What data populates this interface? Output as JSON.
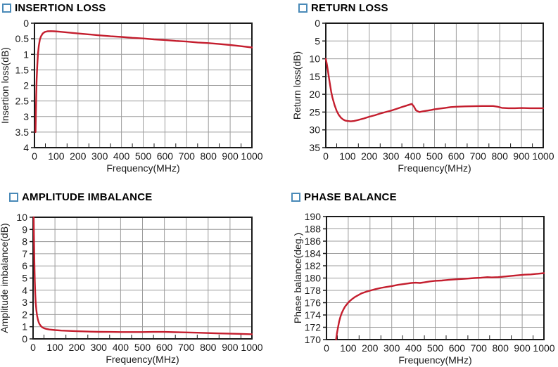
{
  "colors": {
    "curve": "#c41e2e",
    "grid": "#9c9c9c",
    "frame": "#1a1a1a",
    "text": "#1a1a1a",
    "title_square_border": "#4a8ab8",
    "background": "#ffffff"
  },
  "chart_data": [
    {
      "type": "line",
      "title": "INSERTION LOSS",
      "xlabel": "Frequency(MHz)",
      "ylabel": "Insertion loss(dB)",
      "xlim": [
        0,
        1000
      ],
      "ylim": [
        0,
        4
      ],
      "y_inverted": true,
      "grid": true,
      "legend": "none",
      "xticks": [
        0,
        100,
        200,
        300,
        400,
        500,
        600,
        700,
        800,
        900,
        1000
      ],
      "x_minor_step": 50,
      "yticks": [
        0,
        0.5,
        1,
        1.5,
        2,
        2.5,
        3,
        3.5,
        4
      ],
      "line_color": "#c41e2e",
      "series": [
        {
          "name": "insertion loss",
          "points": [
            [
              5,
              3.5
            ],
            [
              6,
              3.0
            ],
            [
              8,
              2.3
            ],
            [
              10,
              1.8
            ],
            [
              13,
              1.35
            ],
            [
              16,
              1.0
            ],
            [
              20,
              0.72
            ],
            [
              25,
              0.52
            ],
            [
              30,
              0.42
            ],
            [
              38,
              0.33
            ],
            [
              48,
              0.28
            ],
            [
              60,
              0.26
            ],
            [
              75,
              0.255
            ],
            [
              90,
              0.26
            ],
            [
              110,
              0.27
            ],
            [
              140,
              0.29
            ],
            [
              170,
              0.31
            ],
            [
              200,
              0.33
            ],
            [
              250,
              0.36
            ],
            [
              300,
              0.39
            ],
            [
              350,
              0.42
            ],
            [
              400,
              0.44
            ],
            [
              450,
              0.47
            ],
            [
              500,
              0.49
            ],
            [
              550,
              0.52
            ],
            [
              600,
              0.54
            ],
            [
              650,
              0.57
            ],
            [
              700,
              0.59
            ],
            [
              750,
              0.62
            ],
            [
              800,
              0.64
            ],
            [
              850,
              0.67
            ],
            [
              900,
              0.7
            ],
            [
              950,
              0.74
            ],
            [
              1000,
              0.78
            ]
          ]
        }
      ]
    },
    {
      "type": "line",
      "title": "RETURN LOSS",
      "xlabel": "Frequency(MHz)",
      "ylabel": "Return loss(dB)",
      "xlim": [
        0,
        1000
      ],
      "ylim": [
        0,
        35
      ],
      "y_inverted": true,
      "grid": true,
      "legend": "none",
      "xticks": [
        0,
        100,
        200,
        300,
        400,
        500,
        600,
        700,
        800,
        900,
        1000
      ],
      "x_minor_step": 50,
      "yticks": [
        0,
        5,
        10,
        15,
        20,
        25,
        30,
        35
      ],
      "line_color": "#c41e2e",
      "series": [
        {
          "name": "return loss",
          "points": [
            [
              0,
              10
            ],
            [
              5,
              11.5
            ],
            [
              10,
              13.5
            ],
            [
              15,
              15.5
            ],
            [
              20,
              17.5
            ],
            [
              25,
              19.3
            ],
            [
              30,
              20.8
            ],
            [
              40,
              23.0
            ],
            [
              50,
              24.7
            ],
            [
              60,
              25.8
            ],
            [
              70,
              26.6
            ],
            [
              80,
              27.1
            ],
            [
              90,
              27.4
            ],
            [
              100,
              27.5
            ],
            [
              115,
              27.6
            ],
            [
              130,
              27.5
            ],
            [
              150,
              27.2
            ],
            [
              175,
              26.8
            ],
            [
              200,
              26.3
            ],
            [
              225,
              25.9
            ],
            [
              250,
              25.4
            ],
            [
              275,
              25.0
            ],
            [
              300,
              24.6
            ],
            [
              325,
              24.1
            ],
            [
              350,
              23.6
            ],
            [
              370,
              23.2
            ],
            [
              385,
              22.9
            ],
            [
              395,
              22.7
            ],
            [
              405,
              23.4
            ],
            [
              415,
              24.5
            ],
            [
              430,
              25.0
            ],
            [
              445,
              24.8
            ],
            [
              465,
              24.6
            ],
            [
              485,
              24.4
            ],
            [
              500,
              24.2
            ],
            [
              525,
              24.0
            ],
            [
              550,
              23.8
            ],
            [
              575,
              23.6
            ],
            [
              600,
              23.5
            ],
            [
              640,
              23.4
            ],
            [
              680,
              23.35
            ],
            [
              720,
              23.3
            ],
            [
              750,
              23.3
            ],
            [
              770,
              23.3
            ],
            [
              790,
              23.5
            ],
            [
              810,
              23.8
            ],
            [
              840,
              23.9
            ],
            [
              870,
              23.9
            ],
            [
              900,
              23.85
            ],
            [
              940,
              23.9
            ],
            [
              970,
              23.9
            ],
            [
              1000,
              23.9
            ]
          ]
        }
      ]
    },
    {
      "type": "line",
      "title": "AMPLITUDE IMBALANCE",
      "xlabel": "Frequency(MHz)",
      "ylabel": "Amplitude imbalance(dB)",
      "xlim": [
        0,
        1000
      ],
      "ylim": [
        0,
        10
      ],
      "y_inverted": false,
      "grid": true,
      "legend": "none",
      "xticks": [
        0,
        100,
        200,
        300,
        400,
        500,
        600,
        700,
        800,
        900,
        1000
      ],
      "x_minor_step": 50,
      "yticks": [
        0,
        1,
        2,
        3,
        4,
        5,
        6,
        7,
        8,
        9,
        10
      ],
      "line_color": "#c41e2e",
      "series": [
        {
          "name": "amplitude imbalance",
          "points": [
            [
              3,
              10
            ],
            [
              4,
              8.6
            ],
            [
              5,
              7.3
            ],
            [
              6,
              6.2
            ],
            [
              7,
              5.4
            ],
            [
              8,
              4.7
            ],
            [
              10,
              3.7
            ],
            [
              12,
              3.0
            ],
            [
              15,
              2.35
            ],
            [
              18,
              1.95
            ],
            [
              22,
              1.6
            ],
            [
              26,
              1.35
            ],
            [
              30,
              1.2
            ],
            [
              36,
              1.05
            ],
            [
              42,
              0.95
            ],
            [
              50,
              0.88
            ],
            [
              60,
              0.82
            ],
            [
              75,
              0.77
            ],
            [
              100,
              0.72
            ],
            [
              130,
              0.68
            ],
            [
              160,
              0.66
            ],
            [
              200,
              0.63
            ],
            [
              250,
              0.6
            ],
            [
              300,
              0.58
            ],
            [
              350,
              0.57
            ],
            [
              400,
              0.56
            ],
            [
              450,
              0.56
            ],
            [
              500,
              0.56
            ],
            [
              550,
              0.57
            ],
            [
              600,
              0.57
            ],
            [
              650,
              0.55
            ],
            [
              700,
              0.53
            ],
            [
              750,
              0.51
            ],
            [
              800,
              0.48
            ],
            [
              850,
              0.45
            ],
            [
              900,
              0.43
            ],
            [
              950,
              0.41
            ],
            [
              1000,
              0.38
            ]
          ]
        }
      ]
    },
    {
      "type": "line",
      "title": "PHASE BALANCE",
      "xlabel": "Frequency(MHz)",
      "ylabel": "Phase balance(deg.)",
      "xlim": [
        0,
        1000
      ],
      "ylim": [
        170,
        190
      ],
      "y_inverted": false,
      "grid": true,
      "legend": "none",
      "xticks": [
        0,
        100,
        200,
        300,
        400,
        500,
        600,
        700,
        800,
        900,
        1000
      ],
      "x_minor_step": 50,
      "yticks": [
        170,
        172,
        174,
        176,
        178,
        180,
        182,
        184,
        186,
        188,
        190
      ],
      "line_color": "#c41e2e",
      "series": [
        {
          "name": "phase balance",
          "points": [
            [
              44,
              170
            ],
            [
              48,
              171
            ],
            [
              53,
              172
            ],
            [
              58,
              172.9
            ],
            [
              64,
              173.7
            ],
            [
              70,
              174.3
            ],
            [
              78,
              174.9
            ],
            [
              86,
              175.4
            ],
            [
              95,
              175.8
            ],
            [
              105,
              176.2
            ],
            [
              115,
              176.5
            ],
            [
              130,
              176.9
            ],
            [
              145,
              177.2
            ],
            [
              160,
              177.5
            ],
            [
              180,
              177.75
            ],
            [
              200,
              177.95
            ],
            [
              225,
              178.2
            ],
            [
              250,
              178.4
            ],
            [
              275,
              178.55
            ],
            [
              300,
              178.7
            ],
            [
              330,
              178.9
            ],
            [
              360,
              179.05
            ],
            [
              390,
              179.2
            ],
            [
              410,
              179.25
            ],
            [
              430,
              179.2
            ],
            [
              450,
              179.3
            ],
            [
              475,
              179.45
            ],
            [
              500,
              179.55
            ],
            [
              530,
              179.6
            ],
            [
              560,
              179.7
            ],
            [
              600,
              179.8
            ],
            [
              640,
              179.9
            ],
            [
              680,
              180.0
            ],
            [
              710,
              180.05
            ],
            [
              740,
              180.15
            ],
            [
              760,
              180.1
            ],
            [
              790,
              180.15
            ],
            [
              820,
              180.25
            ],
            [
              850,
              180.35
            ],
            [
              880,
              180.45
            ],
            [
              910,
              180.55
            ],
            [
              940,
              180.6
            ],
            [
              970,
              180.7
            ],
            [
              1000,
              180.8
            ]
          ]
        }
      ]
    }
  ]
}
